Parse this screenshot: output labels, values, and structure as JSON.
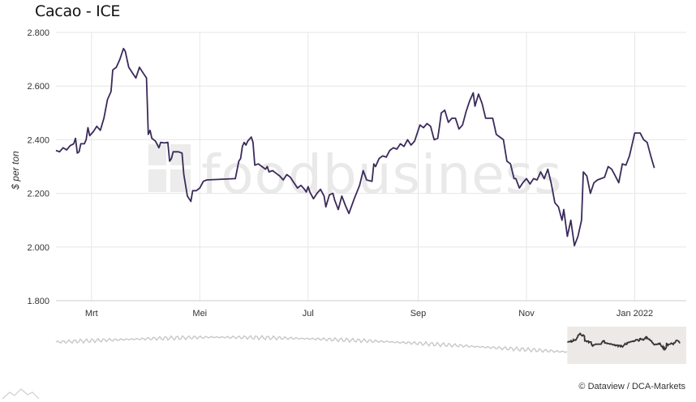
{
  "page": {
    "title": "Cacao - ICE",
    "credit": "© Dataview / DCA-Markets",
    "watermark": "foodbusiness"
  },
  "colors": {
    "line": "#3b2a5a",
    "grid": "#e6e6e6",
    "navigator_line": "#c8c8c8",
    "navigator_selected_line": "#333333",
    "navigator_mask": "#ece9e6"
  },
  "chart_data": {
    "type": "line",
    "title": "Cacao - ICE",
    "xlabel": "",
    "ylabel": "$ per ton",
    "ylim": [
      1800,
      2800
    ],
    "yticks": [
      1800,
      2000,
      2200,
      2400,
      2600,
      2800
    ],
    "ytick_labels": [
      "1.800",
      "2.000",
      "2.200",
      "2.400",
      "2.600",
      "2.800"
    ],
    "xlim": [
      "2021-02-09",
      "2022-01-30"
    ],
    "xticks": [
      "2021-03-01",
      "2021-05-01",
      "2021-07-01",
      "2021-09-01",
      "2021-11-01",
      "2022-01-01"
    ],
    "xtick_labels": [
      "Mrt",
      "Mei",
      "Jul",
      "Sep",
      "Nov",
      "Jan 2022"
    ],
    "grid": true,
    "series": [
      {
        "points": [
          [
            "2021-02-09",
            2360
          ],
          [
            "2021-02-11",
            2355
          ],
          [
            "2021-02-13",
            2370
          ],
          [
            "2021-02-15",
            2362
          ],
          [
            "2021-02-17",
            2378
          ],
          [
            "2021-02-19",
            2385
          ],
          [
            "2021-02-20",
            2405
          ],
          [
            "2021-02-21",
            2350
          ],
          [
            "2021-02-22",
            2355
          ],
          [
            "2021-02-23",
            2385
          ],
          [
            "2021-02-25",
            2385
          ],
          [
            "2021-02-26",
            2400
          ],
          [
            "2021-02-27",
            2445
          ],
          [
            "2021-02-28",
            2415
          ],
          [
            "2021-03-02",
            2430
          ],
          [
            "2021-03-04",
            2450
          ],
          [
            "2021-03-06",
            2435
          ],
          [
            "2021-03-08",
            2480
          ],
          [
            "2021-03-10",
            2550
          ],
          [
            "2021-03-12",
            2580
          ],
          [
            "2021-03-13",
            2660
          ],
          [
            "2021-03-15",
            2670
          ],
          [
            "2021-03-17",
            2700
          ],
          [
            "2021-03-19",
            2740
          ],
          [
            "2021-03-20",
            2730
          ],
          [
            "2021-03-22",
            2670
          ],
          [
            "2021-03-24",
            2650
          ],
          [
            "2021-03-26",
            2630
          ],
          [
            "2021-03-28",
            2670
          ],
          [
            "2021-03-30",
            2650
          ],
          [
            "2021-04-01",
            2630
          ],
          [
            "2021-04-02",
            2420
          ],
          [
            "2021-04-03",
            2435
          ],
          [
            "2021-04-04",
            2405
          ],
          [
            "2021-04-06",
            2395
          ],
          [
            "2021-04-08",
            2370
          ],
          [
            "2021-04-09",
            2390
          ],
          [
            "2021-04-11",
            2388
          ],
          [
            "2021-04-13",
            2390
          ],
          [
            "2021-04-14",
            2320
          ],
          [
            "2021-04-15",
            2330
          ],
          [
            "2021-04-16",
            2355
          ],
          [
            "2021-04-19",
            2355
          ],
          [
            "2021-04-21",
            2350
          ],
          [
            "2021-04-22",
            2270
          ],
          [
            "2021-04-24",
            2190
          ],
          [
            "2021-04-26",
            2170
          ],
          [
            "2021-04-27",
            2210
          ],
          [
            "2021-04-29",
            2210
          ],
          [
            "2021-05-01",
            2220
          ],
          [
            "2021-05-03",
            2245
          ],
          [
            "2021-05-05",
            2250
          ],
          [
            "2021-05-21",
            2255
          ],
          [
            "2021-05-23",
            2320
          ],
          [
            "2021-05-24",
            2330
          ],
          [
            "2021-05-25",
            2375
          ],
          [
            "2021-05-26",
            2390
          ],
          [
            "2021-05-27",
            2380
          ],
          [
            "2021-05-28",
            2395
          ],
          [
            "2021-05-30",
            2410
          ],
          [
            "2021-05-31",
            2390
          ],
          [
            "2021-06-01",
            2305
          ],
          [
            "2021-06-03",
            2310
          ],
          [
            "2021-06-05",
            2300
          ],
          [
            "2021-06-07",
            2290
          ],
          [
            "2021-06-08",
            2300
          ],
          [
            "2021-06-09",
            2280
          ],
          [
            "2021-06-11",
            2285
          ],
          [
            "2021-06-13",
            2275
          ],
          [
            "2021-06-15",
            2265
          ],
          [
            "2021-06-17",
            2250
          ],
          [
            "2021-06-19",
            2270
          ],
          [
            "2021-06-21",
            2260
          ],
          [
            "2021-06-23",
            2240
          ],
          [
            "2021-06-25",
            2220
          ],
          [
            "2021-06-27",
            2230
          ],
          [
            "2021-06-29",
            2215
          ],
          [
            "2021-06-30",
            2205
          ],
          [
            "2021-07-01",
            2225
          ],
          [
            "2021-07-02",
            2205
          ],
          [
            "2021-07-04",
            2180
          ],
          [
            "2021-07-06",
            2200
          ],
          [
            "2021-07-08",
            2215
          ],
          [
            "2021-07-10",
            2190
          ],
          [
            "2021-07-11",
            2150
          ],
          [
            "2021-07-13",
            2195
          ],
          [
            "2021-07-15",
            2200
          ],
          [
            "2021-07-16",
            2175
          ],
          [
            "2021-07-18",
            2140
          ],
          [
            "2021-07-20",
            2190
          ],
          [
            "2021-07-22",
            2155
          ],
          [
            "2021-07-24",
            2125
          ],
          [
            "2021-07-27",
            2180
          ],
          [
            "2021-07-30",
            2230
          ],
          [
            "2021-08-01",
            2285
          ],
          [
            "2021-08-03",
            2250
          ],
          [
            "2021-08-06",
            2245
          ],
          [
            "2021-08-07",
            2310
          ],
          [
            "2021-08-08",
            2300
          ],
          [
            "2021-08-10",
            2330
          ],
          [
            "2021-08-12",
            2340
          ],
          [
            "2021-08-14",
            2335
          ],
          [
            "2021-08-16",
            2360
          ],
          [
            "2021-08-18",
            2370
          ],
          [
            "2021-08-20",
            2365
          ],
          [
            "2021-08-22",
            2385
          ],
          [
            "2021-08-24",
            2375
          ],
          [
            "2021-08-26",
            2400
          ],
          [
            "2021-08-28",
            2380
          ],
          [
            "2021-08-30",
            2395
          ],
          [
            "2021-09-02",
            2455
          ],
          [
            "2021-09-04",
            2445
          ],
          [
            "2021-09-06",
            2460
          ],
          [
            "2021-09-08",
            2450
          ],
          [
            "2021-09-10",
            2400
          ],
          [
            "2021-09-12",
            2405
          ],
          [
            "2021-09-13",
            2450
          ],
          [
            "2021-09-14",
            2500
          ],
          [
            "2021-09-16",
            2510
          ],
          [
            "2021-09-18",
            2465
          ],
          [
            "2021-09-20",
            2480
          ],
          [
            "2021-09-22",
            2480
          ],
          [
            "2021-09-24",
            2440
          ],
          [
            "2021-09-26",
            2455
          ],
          [
            "2021-09-28",
            2505
          ],
          [
            "2021-09-30",
            2545
          ],
          [
            "2021-10-02",
            2575
          ],
          [
            "2021-10-03",
            2525
          ],
          [
            "2021-10-05",
            2570
          ],
          [
            "2021-10-07",
            2535
          ],
          [
            "2021-10-09",
            2480
          ],
          [
            "2021-10-11",
            2480
          ],
          [
            "2021-10-13",
            2480
          ],
          [
            "2021-10-15",
            2420
          ],
          [
            "2021-10-17",
            2410
          ],
          [
            "2021-10-19",
            2400
          ],
          [
            "2021-10-21",
            2320
          ],
          [
            "2021-10-23",
            2310
          ],
          [
            "2021-10-25",
            2255
          ],
          [
            "2021-10-26",
            2255
          ],
          [
            "2021-10-28",
            2220
          ],
          [
            "2021-10-30",
            2240
          ],
          [
            "2021-11-01",
            2255
          ],
          [
            "2021-11-03",
            2235
          ],
          [
            "2021-11-05",
            2255
          ],
          [
            "2021-11-07",
            2250
          ],
          [
            "2021-11-09",
            2280
          ],
          [
            "2021-11-11",
            2255
          ],
          [
            "2021-11-13",
            2290
          ],
          [
            "2021-11-15",
            2235
          ],
          [
            "2021-11-17",
            2165
          ],
          [
            "2021-11-19",
            2150
          ],
          [
            "2021-11-21",
            2100
          ],
          [
            "2021-11-22",
            2140
          ],
          [
            "2021-11-24",
            2040
          ],
          [
            "2021-11-26",
            2100
          ],
          [
            "2021-11-28",
            2005
          ],
          [
            "2021-11-30",
            2040
          ],
          [
            "2021-12-02",
            2100
          ],
          [
            "2021-12-03",
            2280
          ],
          [
            "2021-12-05",
            2265
          ],
          [
            "2021-12-07",
            2200
          ],
          [
            "2021-12-09",
            2240
          ],
          [
            "2021-12-11",
            2250
          ],
          [
            "2021-12-13",
            2255
          ],
          [
            "2021-12-15",
            2260
          ],
          [
            "2021-12-17",
            2300
          ],
          [
            "2021-12-19",
            2290
          ],
          [
            "2021-12-21",
            2265
          ],
          [
            "2021-12-23",
            2240
          ],
          [
            "2021-12-25",
            2310
          ],
          [
            "2021-12-27",
            2305
          ],
          [
            "2021-12-29",
            2340
          ],
          [
            "2022-01-01",
            2425
          ],
          [
            "2022-01-04",
            2425
          ],
          [
            "2022-01-06",
            2400
          ],
          [
            "2022-01-08",
            2390
          ],
          [
            "2022-01-10",
            2340
          ],
          [
            "2022-01-12",
            2295
          ]
        ]
      }
    ],
    "navigator": {
      "xlim": [
        "2016-12-01",
        "2022-01-31"
      ],
      "selected_range": [
        "2021-02-09",
        "2022-01-12"
      ],
      "ylim": [
        1700,
        3400
      ]
    }
  }
}
